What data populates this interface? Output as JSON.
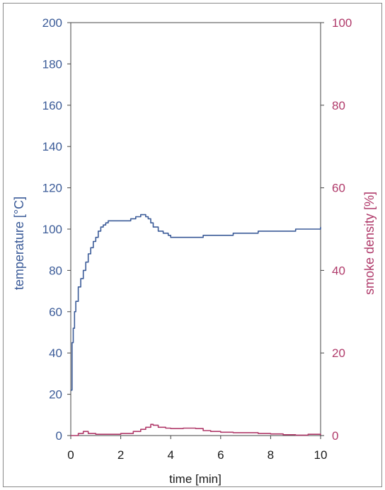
{
  "chart_data": {
    "type": "line",
    "title": "",
    "xlabel": "time [min]",
    "ylabel_left": "temperature [°C]",
    "ylabel_right": "smoke density [%]",
    "xlim": [
      0,
      10
    ],
    "ylim_left": [
      0,
      200
    ],
    "ylim_right": [
      0,
      100
    ],
    "x_ticks": [
      "0",
      "2",
      "4",
      "6",
      "8",
      "10"
    ],
    "y_ticks_left": [
      "0",
      "20",
      "40",
      "60",
      "80",
      "100",
      "120",
      "140",
      "160",
      "180",
      "200"
    ],
    "y_ticks_right": [
      "0",
      "20",
      "40",
      "60",
      "80",
      "100"
    ],
    "grid": false,
    "legend": "none",
    "series": [
      {
        "axis": "left",
        "color": "#3b5b98",
        "x": [
          0,
          0.05,
          0.1,
          0.15,
          0.2,
          0.3,
          0.4,
          0.5,
          0.6,
          0.7,
          0.8,
          0.9,
          1.0,
          1.1,
          1.2,
          1.3,
          1.4,
          1.5,
          1.6,
          1.8,
          2.0,
          2.2,
          2.4,
          2.6,
          2.8,
          3.0,
          3.1,
          3.2,
          3.3,
          3.5,
          3.7,
          3.9,
          4.0,
          4.2,
          4.5,
          4.8,
          5.0,
          5.3,
          5.6,
          6.0,
          6.5,
          7.0,
          7.5,
          8.0,
          8.5,
          9.0,
          9.5,
          9.9,
          10.0
        ],
        "y": [
          22,
          45,
          52,
          60,
          65,
          72,
          76,
          80,
          84,
          88,
          91,
          94,
          96,
          99,
          101,
          102,
          103,
          104,
          104,
          104,
          104,
          104,
          105,
          106,
          107,
          106,
          105,
          103,
          101,
          99,
          98,
          97,
          96,
          96,
          96,
          96,
          96,
          97,
          97,
          97,
          98,
          98,
          99,
          99,
          99,
          100,
          100,
          100,
          101
        ]
      },
      {
        "axis": "right",
        "color": "#b03a6a",
        "x": [
          0,
          0.3,
          0.5,
          0.7,
          1.0,
          1.5,
          2.0,
          2.5,
          2.8,
          3.0,
          3.2,
          3.3,
          3.5,
          3.8,
          4.0,
          4.5,
          5.0,
          5.3,
          5.6,
          6.0,
          6.5,
          7.0,
          7.5,
          8.0,
          8.5,
          9.0,
          9.5,
          10.0
        ],
        "y": [
          0,
          0.5,
          1,
          0.5,
          0.3,
          0.3,
          0.5,
          1,
          1.5,
          2,
          2.7,
          2.5,
          2,
          1.8,
          1.7,
          1.8,
          1.7,
          1.2,
          1,
          0.8,
          0.7,
          0.7,
          0.5,
          0.4,
          0.2,
          0.1,
          0.3,
          0.1
        ]
      }
    ]
  }
}
